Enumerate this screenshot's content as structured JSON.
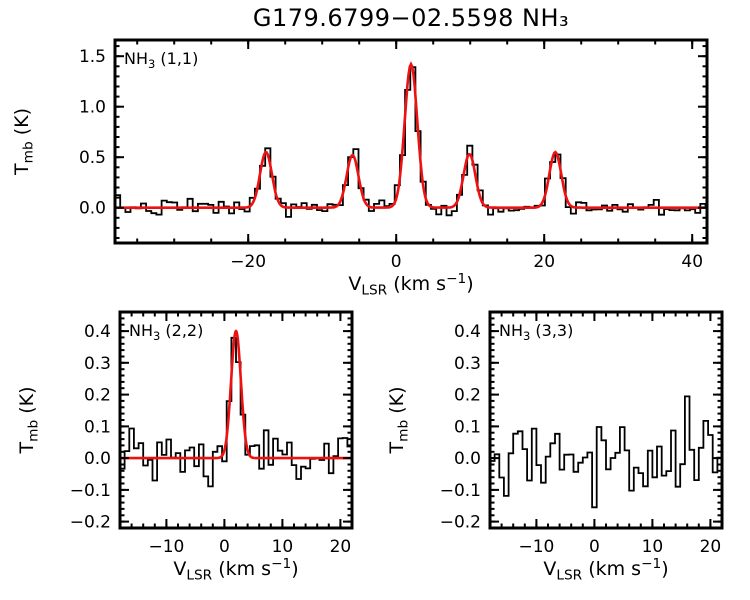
{
  "title": "G179.6799−02.5598 NH₃",
  "colors": {
    "background": "#ffffff",
    "axis": "#000000",
    "data": "#000000",
    "fit": "#ee1111"
  },
  "chart_data": [
    {
      "id": "nh3-11",
      "type": "line",
      "title": "NH₃ (1,1)",
      "panel_label_parts": [
        {
          "t": "NH"
        },
        {
          "t": "3",
          "sub": true
        },
        {
          "t": " (1,1)"
        }
      ],
      "xlabel": "V_LSR (km s⁻¹)",
      "ylabel": "T_mb (K)",
      "xlabel_parts": [
        {
          "t": "V"
        },
        {
          "t": "LSR",
          "sub": true
        },
        {
          "t": " (km s"
        },
        {
          "t": "−1",
          "sup": true
        },
        {
          "t": ")"
        }
      ],
      "ylabel_parts": [
        {
          "t": "T"
        },
        {
          "t": "mb",
          "sub": true
        },
        {
          "t": " (K)"
        }
      ],
      "xlim": [
        -38,
        42
      ],
      "ylim": [
        -0.35,
        1.66
      ],
      "xticks": [
        {
          "v": -20,
          "label": "−20"
        },
        {
          "v": 0,
          "label": "0"
        },
        {
          "v": 20,
          "label": "20"
        },
        {
          "v": 40,
          "label": "40"
        }
      ],
      "yticks": [
        {
          "v": 0.0,
          "label": "0.0"
        },
        {
          "v": 0.5,
          "label": "0.5"
        },
        {
          "v": 1.0,
          "label": "1.0"
        },
        {
          "v": 1.5,
          "label": "1.5"
        }
      ],
      "x_minor_step": 5,
      "y_minor_step": 0.1,
      "channel_width_kms": 0.7,
      "noise_rms_K": 0.045,
      "noise_seed": 7,
      "fit": true,
      "components": [
        {
          "v_kms": -17.6,
          "T_K": 0.55,
          "sigma_kms": 0.8
        },
        {
          "v_kms": -5.9,
          "T_K": 0.52,
          "sigma_kms": 0.8
        },
        {
          "v_kms": 2.0,
          "T_K": 1.42,
          "sigma_kms": 0.85
        },
        {
          "v_kms": 9.9,
          "T_K": 0.53,
          "sigma_kms": 0.8
        },
        {
          "v_kms": 21.5,
          "T_K": 0.55,
          "sigma_kms": 0.8
        }
      ]
    },
    {
      "id": "nh3-22",
      "type": "line",
      "title": "NH₃ (2,2)",
      "panel_label_parts": [
        {
          "t": "NH"
        },
        {
          "t": "3",
          "sub": true
        },
        {
          "t": " (2,2)"
        }
      ],
      "xlabel": "V_LSR (km s⁻¹)",
      "ylabel": "T_mb (K)",
      "xlabel_parts": [
        {
          "t": "V"
        },
        {
          "t": "LSR",
          "sub": true
        },
        {
          "t": " (km s"
        },
        {
          "t": "−1",
          "sup": true
        },
        {
          "t": ")"
        }
      ],
      "ylabel_parts": [
        {
          "t": "T"
        },
        {
          "t": "mb",
          "sub": true
        },
        {
          "t": " (K)"
        }
      ],
      "xlim": [
        -18,
        22
      ],
      "ylim": [
        -0.22,
        0.46
      ],
      "xticks": [
        {
          "v": -10,
          "label": "−10"
        },
        {
          "v": 0,
          "label": "0"
        },
        {
          "v": 10,
          "label": "10"
        },
        {
          "v": 20,
          "label": "20"
        }
      ],
      "yticks": [
        {
          "v": -0.2,
          "label": "−0.2"
        },
        {
          "v": -0.1,
          "label": "−0.1"
        },
        {
          "v": 0.0,
          "label": "0.0"
        },
        {
          "v": 0.1,
          "label": "0.1"
        },
        {
          "v": 0.2,
          "label": "0.2"
        },
        {
          "v": 0.3,
          "label": "0.3"
        },
        {
          "v": 0.4,
          "label": "0.4"
        }
      ],
      "x_minor_step": 2,
      "y_minor_step": 0.02,
      "channel_width_kms": 0.8,
      "noise_rms_K": 0.05,
      "noise_seed": 1234,
      "fit": true,
      "components": [
        {
          "v_kms": 2.0,
          "T_K": 0.4,
          "sigma_kms": 0.85
        }
      ]
    },
    {
      "id": "nh3-33",
      "type": "line",
      "title": "NH₃ (3,3)",
      "panel_label_parts": [
        {
          "t": "NH"
        },
        {
          "t": "3",
          "sub": true
        },
        {
          "t": " (3,3)"
        }
      ],
      "xlabel": "V_LSR (km s⁻¹)",
      "ylabel": "T_mb (K)",
      "xlabel_parts": [
        {
          "t": "V"
        },
        {
          "t": "LSR",
          "sub": true
        },
        {
          "t": " (km s"
        },
        {
          "t": "−1",
          "sup": true
        },
        {
          "t": ")"
        }
      ],
      "ylabel_parts": [
        {
          "t": "T"
        },
        {
          "t": "mb",
          "sub": true
        },
        {
          "t": " (K)"
        }
      ],
      "xlim": [
        -18,
        22
      ],
      "ylim": [
        -0.22,
        0.46
      ],
      "xticks": [
        {
          "v": -10,
          "label": "−10"
        },
        {
          "v": 0,
          "label": "0"
        },
        {
          "v": 10,
          "label": "10"
        },
        {
          "v": 20,
          "label": "20"
        }
      ],
      "yticks": [
        {
          "v": -0.2,
          "label": "−0.2"
        },
        {
          "v": -0.1,
          "label": "−0.1"
        },
        {
          "v": 0.0,
          "label": "0.0"
        },
        {
          "v": 0.1,
          "label": "0.1"
        },
        {
          "v": 0.2,
          "label": "0.2"
        },
        {
          "v": 0.3,
          "label": "0.3"
        },
        {
          "v": 0.4,
          "label": "0.4"
        }
      ],
      "x_minor_step": 2,
      "y_minor_step": 0.02,
      "channel_width_kms": 0.8,
      "noise_rms_K": 0.055,
      "noise_seed": 999,
      "fit": false,
      "components": []
    }
  ]
}
